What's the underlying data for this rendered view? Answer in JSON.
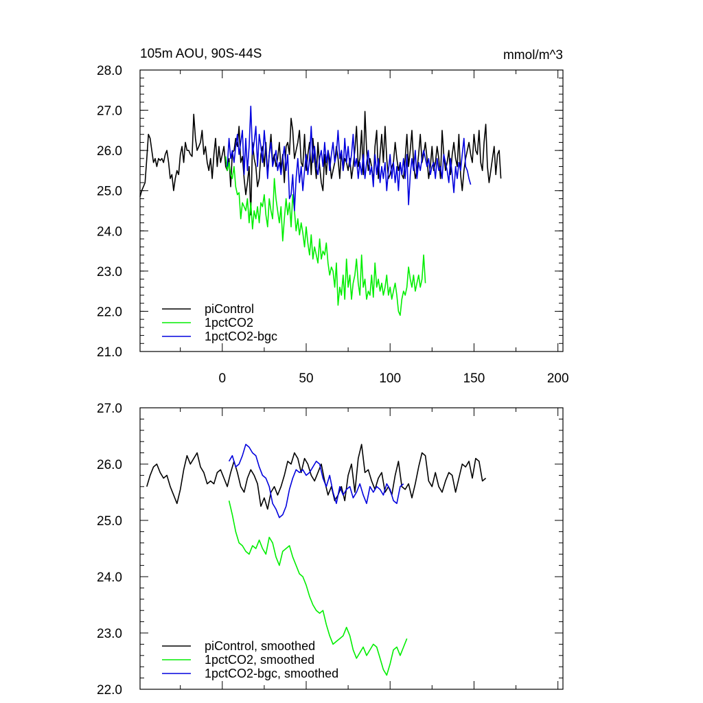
{
  "colors": {
    "piControl": "#000000",
    "pct": "#00ee00",
    "bgc": "#0000dd"
  },
  "chart_data": [
    {
      "type": "line",
      "title": "105m AOU, 90S-44S",
      "units": "mmol/m^3",
      "xlabel": "",
      "ylabel": "",
      "xlim": [
        -49,
        203
      ],
      "ylim": [
        21,
        28
      ],
      "y_ticks": [
        "21.0",
        "22.0",
        "23.0",
        "24.0",
        "25.0",
        "26.0",
        "27.0",
        "28.0"
      ],
      "x_ticks": [
        "0",
        "50",
        "100",
        "150",
        "200"
      ],
      "legend": [
        "piControl",
        "1pctCO2",
        "1pctCO2-bgc"
      ],
      "legend_position": "bottom-left",
      "series": [
        {
          "name": "piControl",
          "x_start": -49,
          "x_step": 1,
          "values": [
            24.85,
            25.0,
            25.1,
            25.2,
            25.8,
            26.4,
            26.3,
            26.0,
            25.7,
            25.8,
            25.6,
            25.8,
            25.75,
            25.8,
            25.7,
            25.9,
            26.0,
            25.7,
            25.3,
            25.4,
            25.0,
            25.3,
            25.5,
            25.4,
            25.9,
            26.1,
            25.7,
            26.2,
            26.0,
            26.0,
            25.9,
            25.85,
            26.9,
            26.3,
            26.0,
            26.1,
            26.2,
            26.5,
            25.9,
            26.1,
            25.7,
            25.5,
            25.8,
            25.3,
            25.9,
            26.3,
            25.6,
            26.1,
            25.7,
            25.9,
            26.1,
            25.6,
            25.5,
            25.8,
            25.1,
            25.95,
            26.0,
            26.3,
            26.1,
            26.6,
            25.7,
            25.85,
            25.3,
            24.9,
            25.2,
            25.6,
            24.4,
            26.2,
            25.8,
            25.6,
            25.1,
            25.3,
            25.9,
            26.1,
            25.6,
            26.2,
            25.4,
            25.9,
            26.4,
            25.7,
            25.9,
            25.6,
            25.8,
            26.2,
            25.5,
            25.9,
            25.2,
            26.1,
            26.2,
            25.9,
            26.8,
            26.5,
            25.8,
            26.0,
            26.2,
            26.5,
            25.7,
            25.6,
            26.4,
            25.5,
            25.9,
            26.2,
            25.4,
            26.3,
            25.8,
            25.3,
            26.2,
            25.6,
            25.2,
            25.0,
            25.9,
            25.4,
            26.0,
            25.8,
            25.3,
            25.5,
            25.7,
            26.1,
            25.8,
            25.3,
            26.0,
            25.5,
            25.8,
            25.7,
            25.5,
            25.8,
            25.3,
            25.6,
            26.0,
            26.6,
            25.6,
            25.8,
            26.5,
            25.4,
            26.97,
            26.0,
            25.5,
            25.8,
            25.6,
            25.2,
            26.1,
            26.5,
            25.3,
            25.9,
            26.4,
            25.7,
            26.6,
            25.8,
            25.3,
            25.4,
            25.6,
            25.7,
            26.2,
            25.8,
            25.5,
            25.7,
            25.4,
            25.3,
            25.8,
            26.4,
            25.6,
            26.0,
            26.5,
            25.7,
            25.3,
            25.5,
            25.9,
            26.4,
            25.7,
            25.9,
            26.2,
            25.8,
            25.3,
            25.6,
            26.1,
            25.5,
            25.7,
            26.1,
            25.8,
            25.3,
            26.5,
            25.9,
            25.5,
            25.7,
            26.0,
            25.4,
            25.9,
            26.2,
            25.8,
            25.6,
            26.4,
            25.4,
            25.0,
            25.5,
            25.8,
            26.0,
            26.2,
            25.9,
            25.7,
            26.4,
            26.0,
            25.9,
            26.5,
            25.7,
            25.5,
            26.2,
            26.65,
            25.6,
            25.2,
            25.5,
            25.8,
            26.1,
            25.4,
            25.9,
            26.0,
            25.3
          ]
        },
        {
          "name": "1pctCO2",
          "x_start": 2,
          "x_step": 1,
          "values": [
            25.85,
            25.5,
            25.7,
            25.4,
            25.3,
            25.6,
            25.1,
            24.9,
            24.95,
            24.3,
            24.7,
            24.6,
            24.5,
            24.8,
            24.2,
            24.7,
            24.05,
            24.5,
            24.3,
            24.6,
            24.2,
            24.7,
            24.6,
            24.9,
            24.4,
            24.1,
            24.8,
            24.5,
            24.3,
            25.3,
            24.8,
            24.5,
            24.2,
            24.6,
            23.75,
            24.3,
            24.8,
            24.4,
            24.7,
            24.1,
            24.9,
            24.5,
            24.0,
            24.3,
            23.9,
            24.2,
            23.95,
            23.6,
            24.1,
            23.7,
            23.4,
            23.9,
            23.3,
            23.6,
            23.4,
            23.2,
            23.8,
            23.3,
            23.5,
            23.4,
            23.7,
            23.2,
            22.9,
            23.1,
            23.0,
            22.6,
            23.2,
            22.15,
            22.6,
            22.4,
            22.9,
            22.3,
            23.3,
            22.6,
            22.9,
            22.3,
            22.7,
            22.9,
            23.3,
            22.7,
            22.4,
            23.4,
            22.6,
            22.8,
            22.3,
            22.5,
            22.4,
            22.9,
            22.35,
            23.2,
            22.6,
            22.8,
            22.5,
            22.7,
            22.4,
            22.6,
            22.9,
            22.4,
            22.6,
            22.3,
            22.5,
            22.7,
            22.4,
            22.0,
            21.9,
            22.3,
            22.5,
            22.4,
            22.6,
            23.1,
            22.8,
            22.6,
            22.9,
            22.5,
            22.7,
            22.9,
            22.6,
            22.8,
            23.4,
            22.7
          ]
        },
        {
          "name": "1pctCO2-bgc",
          "x_start": 3,
          "x_step": 1,
          "values": [
            25.6,
            26.3,
            25.8,
            26.0,
            25.7,
            26.1,
            26.4,
            25.9,
            26.2,
            26.5,
            25.4,
            26.3,
            25.5,
            26.1,
            27.1,
            25.9,
            26.2,
            26.6,
            25.6,
            26.4,
            26.1,
            25.7,
            26.5,
            26.0,
            25.3,
            25.9,
            26.2,
            25.6,
            25.8,
            26.0,
            25.5,
            25.7,
            25.4,
            25.8,
            26.1,
            25.5,
            25.9,
            24.8,
            24.9,
            25.4,
            24.5,
            25.3,
            25.8,
            25.2,
            25.6,
            25.0,
            25.5,
            25.9,
            25.4,
            25.8,
            26.6,
            25.7,
            26.1,
            25.6,
            25.4,
            25.8,
            26.0,
            25.6,
            26.2,
            25.7,
            26.0,
            25.5,
            25.9,
            26.2,
            25.7,
            25.9,
            26.5,
            25.8,
            26.0,
            25.5,
            26.3,
            25.7,
            26.1,
            25.6,
            25.9,
            26.4,
            25.6,
            25.8,
            25.3,
            25.7,
            25.4,
            25.9,
            25.3,
            25.7,
            26.0,
            25.4,
            25.6,
            25.1,
            25.9,
            25.4,
            25.8,
            25.2,
            25.6,
            25.3,
            25.7,
            25.0,
            25.5,
            25.9,
            25.3,
            25.7,
            25.2,
            25.6,
            25.0,
            25.7,
            25.4,
            25.8,
            25.3,
            25.9,
            24.65,
            25.4,
            25.8,
            25.5,
            26.0,
            25.3,
            25.7,
            25.5,
            25.8,
            26.0,
            25.8,
            25.6,
            25.8,
            25.4,
            25.6,
            25.7,
            25.3,
            25.8,
            25.5,
            25.6,
            25.3,
            25.9,
            25.7,
            25.5,
            25.2,
            25.8,
            25.4,
            24.95,
            25.6,
            25.3,
            25.7,
            25.5,
            25.9,
            26.3,
            25.6,
            25.5,
            25.3,
            25.15
          ]
        }
      ]
    },
    {
      "type": "line",
      "title": "",
      "xlabel": "",
      "ylabel": "",
      "xlim": [
        -49,
        203
      ],
      "ylim": [
        22,
        27
      ],
      "y_ticks": [
        "22.0",
        "23.0",
        "24.0",
        "25.0",
        "26.0",
        "27.0"
      ],
      "legend": [
        "piControl, smoothed",
        "1pctCO2, smoothed",
        "1pctCO2-bgc, smoothed"
      ],
      "legend_position": "bottom-left",
      "series": [
        {
          "name": "piControl, smoothed",
          "x_start": -45,
          "x_step": 2,
          "values": [
            25.6,
            25.8,
            25.95,
            26.0,
            25.85,
            25.75,
            25.8,
            25.6,
            25.45,
            25.3,
            25.55,
            25.9,
            26.15,
            26.0,
            26.1,
            26.2,
            25.95,
            25.85,
            25.65,
            25.7,
            25.65,
            25.85,
            25.9,
            25.75,
            25.6,
            25.85,
            26.05,
            25.85,
            25.6,
            25.5,
            25.75,
            25.9,
            25.8,
            25.65,
            25.25,
            25.4,
            25.2,
            25.5,
            25.6,
            25.45,
            25.6,
            25.8,
            26.05,
            26.0,
            26.2,
            26.1,
            25.85,
            26.1,
            26.0,
            25.8,
            25.7,
            25.85,
            26.0,
            25.7,
            25.45,
            25.6,
            25.35,
            25.45,
            25.6,
            25.35,
            25.8,
            26.0,
            25.5,
            26.1,
            26.35,
            25.85,
            25.9,
            25.7,
            25.55,
            25.75,
            25.85,
            25.5,
            25.6,
            25.45,
            25.8,
            26.05,
            25.6,
            25.55,
            25.65,
            25.4,
            25.65,
            25.95,
            26.2,
            26.15,
            25.7,
            25.6,
            25.85,
            25.6,
            25.5,
            25.7,
            25.85,
            25.8,
            25.5,
            25.75,
            26.0,
            25.95,
            26.05,
            25.75,
            26.1,
            26.05,
            25.7,
            25.75
          ]
        },
        {
          "name": "1pctCO2, smoothed",
          "x_start": 4,
          "x_step": 2,
          "values": [
            25.35,
            25.1,
            24.8,
            24.6,
            24.55,
            24.45,
            24.4,
            24.55,
            24.5,
            24.65,
            24.5,
            24.4,
            24.7,
            24.6,
            24.35,
            24.2,
            24.45,
            24.5,
            24.55,
            24.35,
            24.2,
            24.05,
            24.0,
            23.85,
            23.65,
            23.5,
            23.4,
            23.35,
            23.4,
            23.15,
            22.95,
            22.8,
            22.85,
            22.9,
            22.95,
            23.1,
            22.95,
            22.7,
            22.55,
            22.65,
            22.75,
            22.6,
            22.7,
            22.8,
            22.75,
            22.55,
            22.35,
            22.25,
            22.45,
            22.7,
            22.75,
            22.6,
            22.75,
            22.9
          ]
        },
        {
          "name": "1pctCO2-bgc, smoothed",
          "x_start": 4,
          "x_step": 2,
          "values": [
            26.05,
            26.15,
            25.95,
            26.0,
            26.15,
            26.35,
            26.3,
            26.2,
            26.15,
            25.95,
            25.8,
            25.75,
            25.6,
            25.3,
            25.2,
            25.05,
            25.1,
            25.25,
            25.55,
            25.75,
            25.9,
            25.85,
            25.9,
            25.8,
            25.85,
            25.95,
            26.05,
            26.0,
            25.75,
            25.6,
            25.8,
            25.5,
            25.3,
            25.6,
            25.45,
            25.55,
            25.6,
            25.4,
            25.5,
            25.65,
            25.45,
            25.3,
            25.6,
            25.5,
            25.6,
            25.55,
            25.45,
            25.65,
            25.55,
            25.35,
            25.3,
            25.6,
            25.65
          ]
        }
      ]
    }
  ]
}
